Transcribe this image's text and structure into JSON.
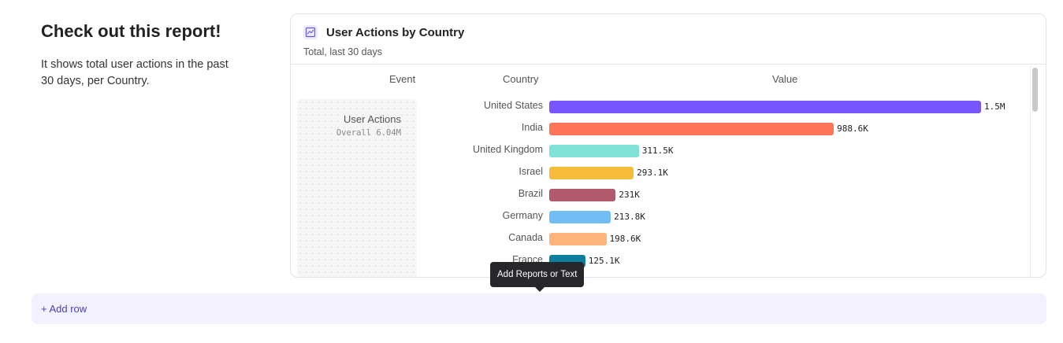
{
  "intro": {
    "title": "Check out this report!",
    "text": "It shows total user actions in the past 30 days, per Country."
  },
  "report": {
    "icon": "line-chart-icon",
    "title": "User Actions by Country",
    "subtitle": "Total, last 30 days",
    "headers": {
      "event": "Event",
      "country": "Country",
      "value": "Value"
    },
    "event": {
      "name": "User Actions",
      "overall": "Overall  6.04M"
    }
  },
  "chart_data": {
    "type": "bar",
    "orientation": "horizontal",
    "categories": [
      "United States",
      "India",
      "United Kingdom",
      "Israel",
      "Brazil",
      "Germany",
      "Canada",
      "France"
    ],
    "values": [
      1500000,
      988600,
      311500,
      293100,
      231000,
      213800,
      198600,
      125100
    ],
    "labels": [
      "1.5M",
      "988.6K",
      "311.5K",
      "293.1K",
      "231K",
      "213.8K",
      "198.6K",
      "125.1K"
    ],
    "colors": [
      "#7856ff",
      "#ff7557",
      "#80e1d9",
      "#f8bc3b",
      "#b2596e",
      "#72bef4",
      "#ffb27a",
      "#0d7ea0"
    ]
  },
  "tooltip": "Add Reports or Text",
  "add_row": "+ Add row"
}
